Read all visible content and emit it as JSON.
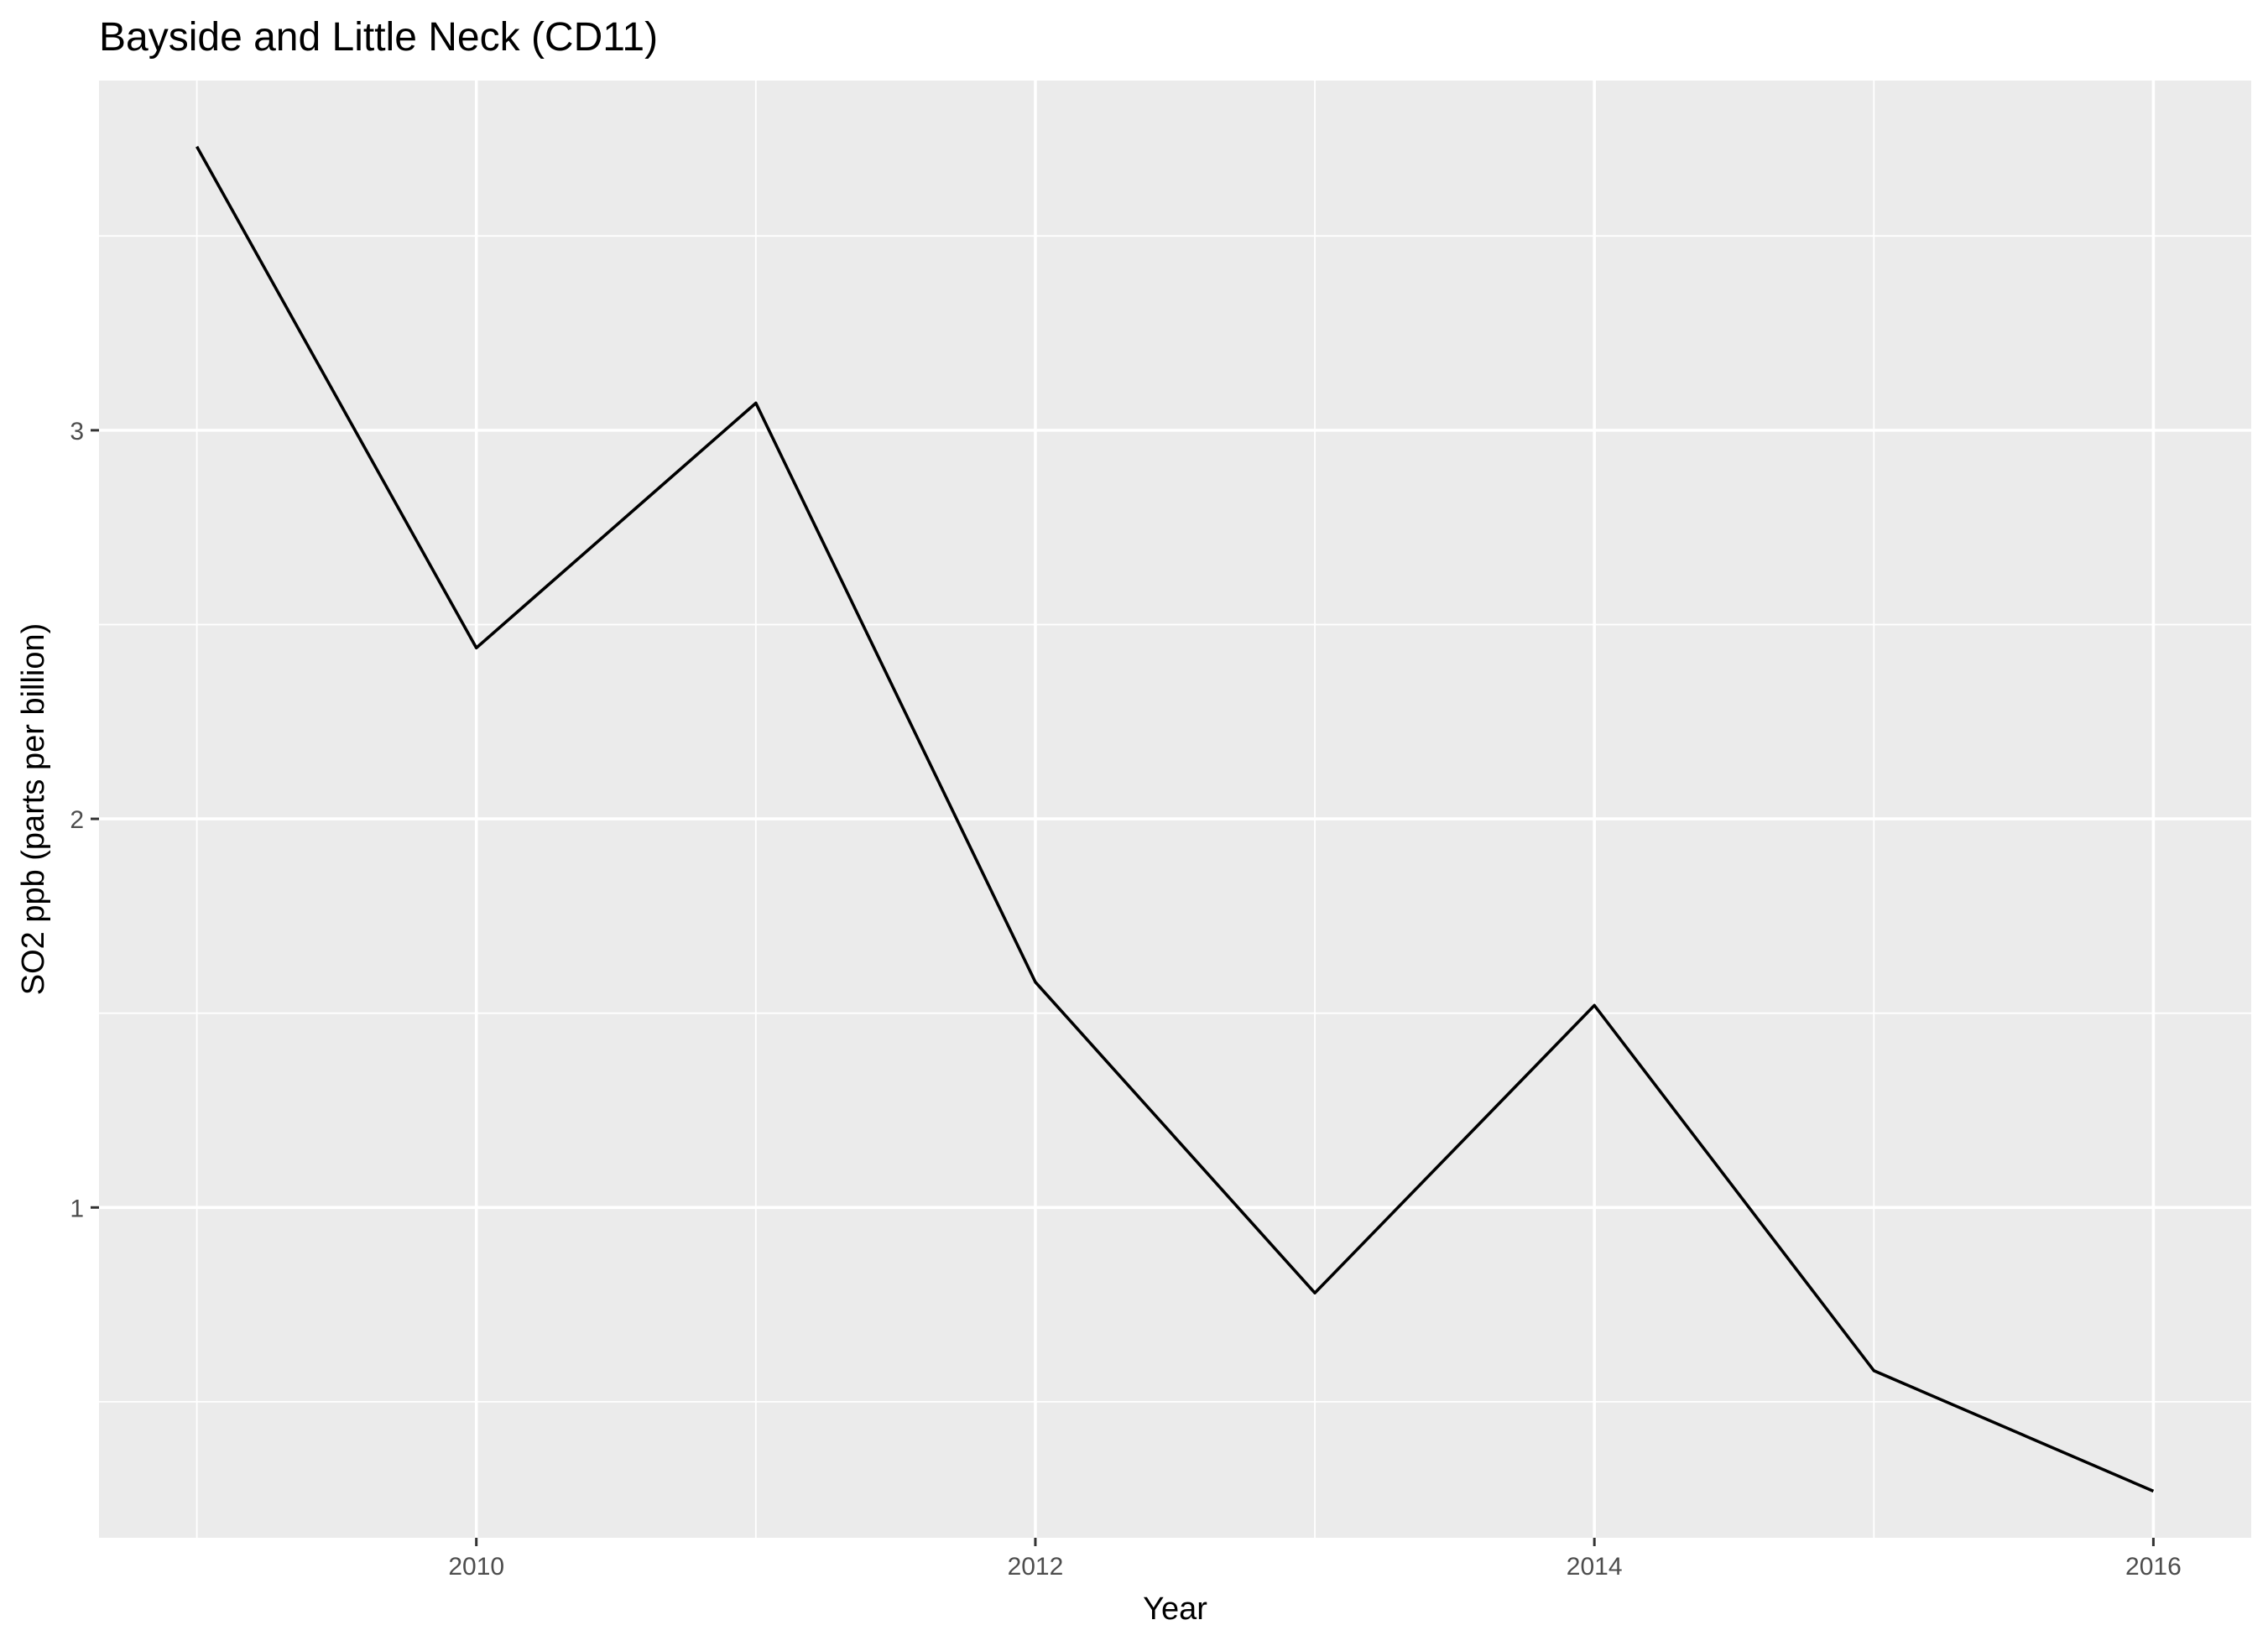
{
  "chart_data": {
    "type": "line",
    "title": "Bayside and Little Neck (CD11)",
    "xlabel": "Year",
    "ylabel": "SO2 ppb (parts per billion)",
    "x": [
      2009,
      2010,
      2011,
      2012,
      2013,
      2014,
      2015,
      2016
    ],
    "series": [
      {
        "values": [
          3.73,
          2.44,
          3.07,
          1.58,
          0.78,
          1.52,
          0.58,
          0.27
        ]
      }
    ],
    "xlim": [
      2008.65,
      2016.35
    ],
    "ylim": [
      0.15,
      3.9
    ],
    "x_ticks": [
      2010,
      2012,
      2014,
      2016
    ],
    "y_ticks": [
      1,
      2,
      3
    ],
    "x_tick_labels": [
      "2010",
      "2012",
      "2014",
      "2016"
    ],
    "y_tick_labels": [
      "1",
      "2",
      "3"
    ],
    "grid": true,
    "legend": "none",
    "colors": {
      "panel_background": "#EBEBEB",
      "grid": "#FFFFFF",
      "line": "#000000",
      "tick_text": "#4D4D4D"
    }
  }
}
